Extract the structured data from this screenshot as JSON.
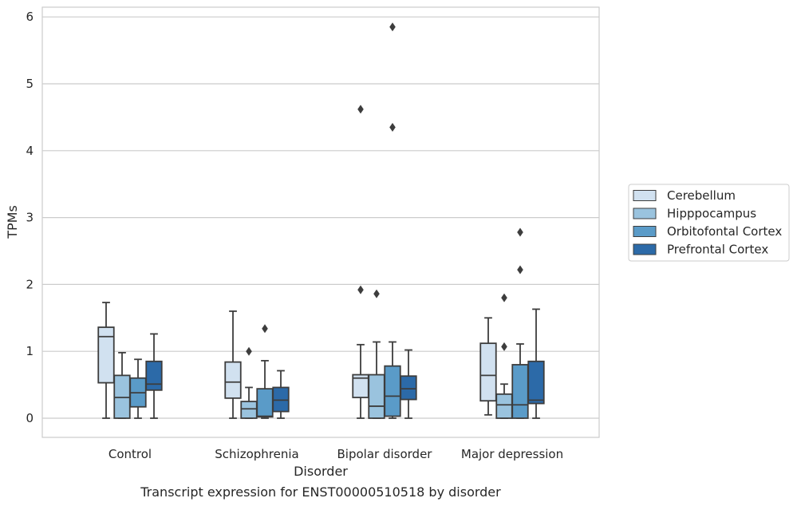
{
  "chart_data": {
    "type": "boxplot",
    "title": "",
    "caption": "Transcript expression for ENST00000510518 by disorder",
    "xlabel": "Disorder",
    "ylabel": "TPMs",
    "ylim": [
      -0.28,
      6.15
    ],
    "yticks": [
      "0",
      "1",
      "2",
      "3",
      "4",
      "5",
      "6"
    ],
    "grid": true,
    "legend_position": "right",
    "categories": [
      "Control",
      "Schizophrenia",
      "Bipolar disorder",
      "Major depression"
    ],
    "series": [
      {
        "name": "Cerebellum",
        "color": "#d1e1f0",
        "boxes": [
          {
            "whislo": 0.0,
            "q1": 0.53,
            "med": 1.22,
            "q3": 1.36,
            "whishi": 1.73,
            "fliers": []
          },
          {
            "whislo": 0.0,
            "q1": 0.3,
            "med": 0.54,
            "q3": 0.84,
            "whishi": 1.6,
            "fliers": []
          },
          {
            "whislo": 0.0,
            "q1": 0.31,
            "med": 0.6,
            "q3": 0.65,
            "whishi": 1.1,
            "fliers": [
              1.92,
              4.62
            ]
          },
          {
            "whislo": 0.05,
            "q1": 0.26,
            "med": 0.64,
            "q3": 1.12,
            "whishi": 1.5,
            "fliers": []
          }
        ]
      },
      {
        "name": "Hipppocampus",
        "color": "#9ac3de",
        "boxes": [
          {
            "whislo": 0.0,
            "q1": 0.0,
            "med": 0.31,
            "q3": 0.64,
            "whishi": 0.98,
            "fliers": []
          },
          {
            "whislo": 0.0,
            "q1": 0.0,
            "med": 0.14,
            "q3": 0.25,
            "whishi": 0.46,
            "fliers": [
              1.0
            ]
          },
          {
            "whislo": 0.0,
            "q1": 0.0,
            "med": 0.18,
            "q3": 0.65,
            "whishi": 1.14,
            "fliers": [
              1.86
            ]
          },
          {
            "whislo": 0.0,
            "q1": 0.0,
            "med": 0.2,
            "q3": 0.36,
            "whishi": 0.51,
            "fliers": [
              1.07,
              1.8
            ]
          }
        ]
      },
      {
        "name": "Orbitofontal Cortex",
        "color": "#5a9bc8",
        "boxes": [
          {
            "whislo": 0.0,
            "q1": 0.17,
            "med": 0.38,
            "q3": 0.6,
            "whishi": 0.88,
            "fliers": []
          },
          {
            "whislo": 0.0,
            "q1": 0.02,
            "med": 0.03,
            "q3": 0.44,
            "whishi": 0.86,
            "fliers": [
              1.34
            ]
          },
          {
            "whislo": 0.0,
            "q1": 0.03,
            "med": 0.33,
            "q3": 0.78,
            "whishi": 1.14,
            "fliers": [
              4.35,
              5.85
            ]
          },
          {
            "whislo": 0.0,
            "q1": 0.0,
            "med": 0.2,
            "q3": 0.8,
            "whishi": 1.11,
            "fliers": [
              2.22,
              2.78
            ]
          }
        ]
      },
      {
        "name": "Prefrontal Cortex",
        "color": "#2c6aa8",
        "boxes": [
          {
            "whislo": 0.0,
            "q1": 0.42,
            "med": 0.51,
            "q3": 0.85,
            "whishi": 1.26,
            "fliers": []
          },
          {
            "whislo": 0.0,
            "q1": 0.1,
            "med": 0.27,
            "q3": 0.46,
            "whishi": 0.71,
            "fliers": []
          },
          {
            "whislo": 0.0,
            "q1": 0.28,
            "med": 0.44,
            "q3": 0.63,
            "whishi": 1.02,
            "fliers": []
          },
          {
            "whislo": 0.0,
            "q1": 0.22,
            "med": 0.27,
            "q3": 0.85,
            "whishi": 1.63,
            "fliers": []
          }
        ]
      }
    ],
    "colors": {
      "box_edge": "#3d3d3d",
      "grid": "#cccccc",
      "frame": "#cccccc",
      "text": "#262626"
    }
  }
}
